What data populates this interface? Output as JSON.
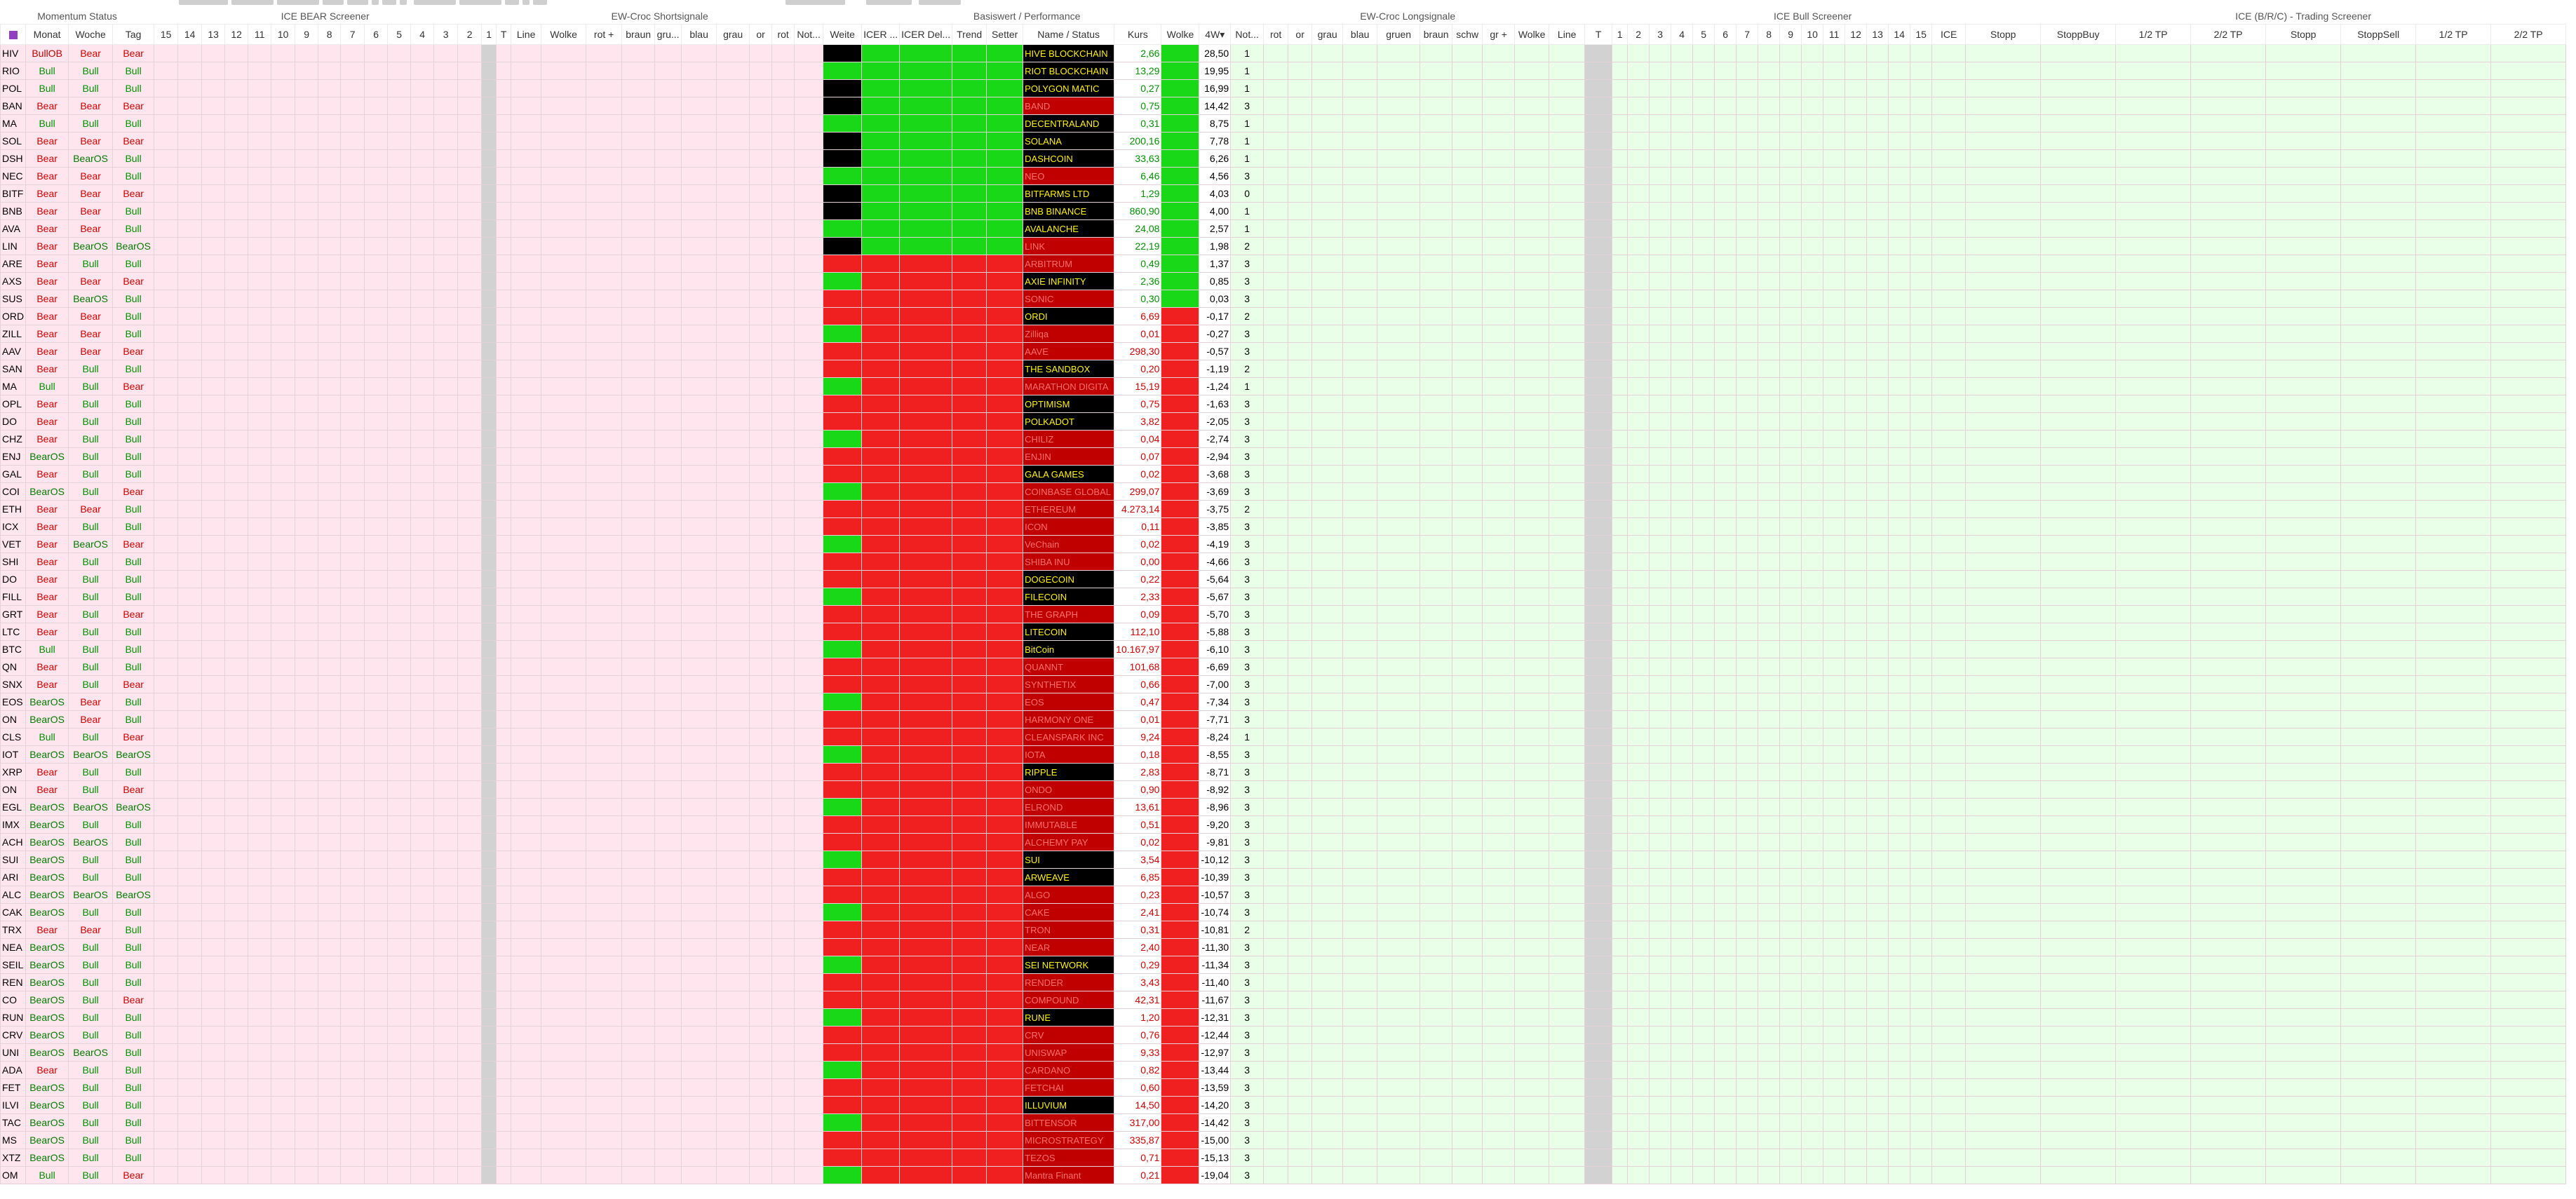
{
  "group_headers": [
    "Momentum Status",
    "ICE BEAR Screener",
    "EW-Croc Shortsignale",
    "Basiswert / Performance",
    "EW-Croc Longsignale",
    "ICE Bull Screener",
    "ICE (B/R/C) - Trading Screener"
  ],
  "columns": [
    "",
    "Monat",
    "Woche",
    "Tag",
    "15",
    "14",
    "13",
    "12",
    "11",
    "10",
    "9",
    "8",
    "7",
    "6",
    "5",
    "4",
    "3",
    "2",
    "1",
    "T",
    "Line",
    "Wolke",
    "rot +",
    "braun",
    "gru...",
    "blau",
    "grau",
    "or",
    "rot",
    "Not...",
    "Weite",
    "ICER ...",
    "ICER Del...",
    "Trend",
    "Setter",
    "Name / Status",
    "Kurs",
    "Wolke",
    "4W▾",
    "Not...",
    "rot",
    "or",
    "grau",
    "blau",
    "gruen",
    "braun",
    "schw",
    "gr +",
    "Wolke",
    "Line",
    "T",
    "1",
    "2",
    "3",
    "4",
    "5",
    "6",
    "7",
    "8",
    "9",
    "10",
    "11",
    "12",
    "13",
    "14",
    "15",
    "ICE",
    "Stopp",
    "StoppBuy",
    "1/2 TP",
    "2/2 TP",
    "Stopp",
    "StoppSell",
    "1/2 TP",
    "2/2 TP"
  ],
  "rows": [
    {
      "tk": "HIV",
      "m": "BullOB",
      "w": "Bear",
      "t": "Bear",
      "name": "HIVE BLOCKCHAIN",
      "kurs": "2,66",
      "fw": "28,50",
      "nt": "1"
    },
    {
      "tk": "RIO",
      "m": "Bull",
      "w": "Bull",
      "t": "Bull",
      "name": "RIOT BLOCKCHAIN",
      "kurs": "13,29",
      "fw": "19,95",
      "nt": "1"
    },
    {
      "tk": "POL",
      "m": "Bull",
      "w": "Bull",
      "t": "Bull",
      "name": "POLYGON MATIC",
      "kurs": "0,27",
      "fw": "16,99",
      "nt": "1"
    },
    {
      "tk": "BAN",
      "m": "Bear",
      "w": "Bear",
      "t": "Bear",
      "name": "BAND",
      "kurs": "0,75",
      "fw": "14,42",
      "nt": "3"
    },
    {
      "tk": "MA",
      "m": "Bull",
      "w": "Bull",
      "t": "Bull",
      "name": "DECENTRALAND",
      "kurs": "0,31",
      "fw": "8,75",
      "nt": "1"
    },
    {
      "tk": "SOL",
      "m": "Bear",
      "w": "Bear",
      "t": "Bear",
      "name": "SOLANA",
      "kurs": "200,16",
      "fw": "7,78",
      "nt": "1"
    },
    {
      "tk": "DSH",
      "m": "Bear",
      "w": "BearOS",
      "t": "Bull",
      "name": "DASHCOIN",
      "kurs": "33,63",
      "fw": "6,26",
      "nt": "1"
    },
    {
      "tk": "NEC",
      "m": "Bear",
      "w": "Bear",
      "t": "Bull",
      "name": "NEO",
      "kurs": "6,46",
      "fw": "4,56",
      "nt": "3"
    },
    {
      "tk": "BITF",
      "m": "Bear",
      "w": "Bear",
      "t": "Bear",
      "name": "BITFARMS LTD",
      "kurs": "1,29",
      "fw": "4,03",
      "nt": "0"
    },
    {
      "tk": "BNB",
      "m": "Bear",
      "w": "Bear",
      "t": "Bull",
      "name": "BNB BINANCE",
      "kurs": "860,90",
      "fw": "4,00",
      "nt": "1"
    },
    {
      "tk": "AVA",
      "m": "Bear",
      "w": "Bear",
      "t": "Bull",
      "name": "AVALANCHE",
      "kurs": "24,08",
      "fw": "2,57",
      "nt": "1"
    },
    {
      "tk": "LIN",
      "m": "Bear",
      "w": "BearOS",
      "t": "BearOS",
      "name": "LINK",
      "kurs": "22,19",
      "fw": "1,98",
      "nt": "2"
    },
    {
      "tk": "ARE",
      "m": "Bear",
      "w": "Bull",
      "t": "Bull",
      "name": "ARBITRUM",
      "kurs": "0,49",
      "fw": "1,37",
      "nt": "3"
    },
    {
      "tk": "AXS",
      "m": "Bear",
      "w": "Bear",
      "t": "Bear",
      "name": "AXIE INFINITY",
      "kurs": "2,36",
      "fw": "0,85",
      "nt": "3"
    },
    {
      "tk": "SUS",
      "m": "Bear",
      "w": "BearOS",
      "t": "Bull",
      "name": "SONIC",
      "kurs": "0,30",
      "fw": "0,03",
      "nt": "3"
    },
    {
      "tk": "ORD",
      "m": "Bear",
      "w": "Bear",
      "t": "Bull",
      "name": "ORDI",
      "kurs": "6,69",
      "fw": "-0,17",
      "nt": "2"
    },
    {
      "tk": "ZILL",
      "m": "Bear",
      "w": "Bear",
      "t": "Bull",
      "name": "Zilliqa",
      "kurs": "0,01",
      "fw": "-0,27",
      "nt": "3"
    },
    {
      "tk": "AAV",
      "m": "Bear",
      "w": "Bear",
      "t": "Bear",
      "name": "AAVE",
      "kurs": "298,30",
      "fw": "-0,57",
      "nt": "3"
    },
    {
      "tk": "SAN",
      "m": "Bear",
      "w": "Bull",
      "t": "Bull",
      "name": "THE SANDBOX",
      "kurs": "0,20",
      "fw": "-1,19",
      "nt": "2"
    },
    {
      "tk": "MA",
      "m": "Bull",
      "w": "Bull",
      "t": "Bear",
      "name": "MARATHON DIGITA",
      "kurs": "15,19",
      "fw": "-1,24",
      "nt": "1"
    },
    {
      "tk": "OPL",
      "m": "Bear",
      "w": "Bull",
      "t": "Bull",
      "name": "OPTIMISM",
      "kurs": "0,75",
      "fw": "-1,63",
      "nt": "3"
    },
    {
      "tk": "DO",
      "m": "Bear",
      "w": "Bull",
      "t": "Bull",
      "name": "POLKADOT",
      "kurs": "3,82",
      "fw": "-2,05",
      "nt": "3"
    },
    {
      "tk": "CHZ",
      "m": "Bear",
      "w": "Bull",
      "t": "Bull",
      "name": "CHILIZ",
      "kurs": "0,04",
      "fw": "-2,74",
      "nt": "3"
    },
    {
      "tk": "ENJ",
      "m": "BearOS",
      "w": "Bull",
      "t": "Bull",
      "name": "ENJIN",
      "kurs": "0,07",
      "fw": "-2,94",
      "nt": "3"
    },
    {
      "tk": "GAL",
      "m": "Bear",
      "w": "Bull",
      "t": "Bull",
      "name": "GALA GAMES",
      "kurs": "0,02",
      "fw": "-3,68",
      "nt": "3"
    },
    {
      "tk": "COI",
      "m": "BearOS",
      "w": "Bull",
      "t": "Bear",
      "name": "COINBASE GLOBAL",
      "kurs": "299,07",
      "fw": "-3,69",
      "nt": "3"
    },
    {
      "tk": "ETH",
      "m": "Bear",
      "w": "Bear",
      "t": "Bull",
      "name": "ETHEREUM",
      "kurs": "4.273,14",
      "fw": "-3,75",
      "nt": "2"
    },
    {
      "tk": "ICX",
      "m": "Bear",
      "w": "Bull",
      "t": "Bull",
      "name": "ICON",
      "kurs": "0,11",
      "fw": "-3,85",
      "nt": "3"
    },
    {
      "tk": "VET",
      "m": "Bear",
      "w": "BearOS",
      "t": "Bear",
      "name": "VeChain",
      "kurs": "0,02",
      "fw": "-4,19",
      "nt": "3"
    },
    {
      "tk": "SHI",
      "m": "Bear",
      "w": "Bull",
      "t": "Bull",
      "name": "SHIBA INU",
      "kurs": "0,00",
      "fw": "-4,66",
      "nt": "3"
    },
    {
      "tk": "DO",
      "m": "Bear",
      "w": "Bull",
      "t": "Bull",
      "name": "DOGECOIN",
      "kurs": "0,22",
      "fw": "-5,64",
      "nt": "3"
    },
    {
      "tk": "FILL",
      "m": "Bear",
      "w": "Bull",
      "t": "Bull",
      "name": "FILECOIN",
      "kurs": "2,33",
      "fw": "-5,67",
      "nt": "3"
    },
    {
      "tk": "GRT",
      "m": "Bear",
      "w": "Bull",
      "t": "Bear",
      "name": "THE GRAPH",
      "kurs": "0,09",
      "fw": "-5,70",
      "nt": "3"
    },
    {
      "tk": "LTC",
      "m": "Bear",
      "w": "Bull",
      "t": "Bull",
      "name": "LITECOIN",
      "kurs": "112,10",
      "fw": "-5,88",
      "nt": "3"
    },
    {
      "tk": "BTC",
      "m": "Bull",
      "w": "Bull",
      "t": "Bull",
      "name": "BitCoin",
      "kurs": "10.167,97",
      "fw": "-6,10",
      "nt": "3"
    },
    {
      "tk": "QN",
      "m": "Bear",
      "w": "Bull",
      "t": "Bull",
      "name": "QUANNT",
      "kurs": "101,68",
      "fw": "-6,69",
      "nt": "3"
    },
    {
      "tk": "SNX",
      "m": "Bear",
      "w": "Bull",
      "t": "Bear",
      "name": "SYNTHETIX",
      "kurs": "0,66",
      "fw": "-7,00",
      "nt": "3"
    },
    {
      "tk": "EOS",
      "m": "BearOS",
      "w": "Bear",
      "t": "Bull",
      "name": "EOS",
      "kurs": "0,47",
      "fw": "-7,34",
      "nt": "3"
    },
    {
      "tk": "ON",
      "m": "BearOS",
      "w": "Bear",
      "t": "Bull",
      "name": "HARMONY ONE",
      "kurs": "0,01",
      "fw": "-7,71",
      "nt": "3"
    },
    {
      "tk": "CLS",
      "m": "Bull",
      "w": "Bull",
      "t": "Bear",
      "name": "CLEANSPARK INC",
      "kurs": "9,24",
      "fw": "-8,24",
      "nt": "1"
    },
    {
      "tk": "IOT",
      "m": "BearOS",
      "w": "BearOS",
      "t": "BearOS",
      "name": "IOTA",
      "kurs": "0,18",
      "fw": "-8,55",
      "nt": "3"
    },
    {
      "tk": "XRP",
      "m": "Bear",
      "w": "Bull",
      "t": "Bull",
      "name": "RIPPLE",
      "kurs": "2,83",
      "fw": "-8,71",
      "nt": "3"
    },
    {
      "tk": "ON",
      "m": "Bear",
      "w": "Bull",
      "t": "Bear",
      "name": "ONDO",
      "kurs": "0,90",
      "fw": "-8,92",
      "nt": "3"
    },
    {
      "tk": "EGL",
      "m": "BearOS",
      "w": "BearOS",
      "t": "BearOS",
      "name": "ELROND",
      "kurs": "13,61",
      "fw": "-8,96",
      "nt": "3"
    },
    {
      "tk": "IMX",
      "m": "BearOS",
      "w": "Bull",
      "t": "Bull",
      "name": "IMMUTABLE",
      "kurs": "0,51",
      "fw": "-9,20",
      "nt": "3"
    },
    {
      "tk": "ACH",
      "m": "BearOS",
      "w": "BearOS",
      "t": "Bull",
      "name": "ALCHEMY PAY",
      "kurs": "0,02",
      "fw": "-9,81",
      "nt": "3"
    },
    {
      "tk": "SUI",
      "m": "BearOS",
      "w": "Bull",
      "t": "Bull",
      "name": "SUI",
      "kurs": "3,54",
      "fw": "-10,12",
      "nt": "3"
    },
    {
      "tk": "ARI",
      "m": "BearOS",
      "w": "Bull",
      "t": "Bull",
      "name": "ARWEAVE",
      "kurs": "6,85",
      "fw": "-10,39",
      "nt": "3"
    },
    {
      "tk": "ALC",
      "m": "BearOS",
      "w": "BearOS",
      "t": "BearOS",
      "name": "ALGO",
      "kurs": "0,23",
      "fw": "-10,57",
      "nt": "3"
    },
    {
      "tk": "CAK",
      "m": "BearOS",
      "w": "Bull",
      "t": "Bull",
      "name": "CAKE",
      "kurs": "2,41",
      "fw": "-10,74",
      "nt": "3"
    },
    {
      "tk": "TRX",
      "m": "Bear",
      "w": "Bear",
      "t": "Bull",
      "name": "TRON",
      "kurs": "0,31",
      "fw": "-10,81",
      "nt": "2"
    },
    {
      "tk": "NEA",
      "m": "BearOS",
      "w": "Bull",
      "t": "Bull",
      "name": "NEAR",
      "kurs": "2,40",
      "fw": "-11,30",
      "nt": "3"
    },
    {
      "tk": "SEIL",
      "m": "BearOS",
      "w": "Bull",
      "t": "Bull",
      "name": "SEI NETWORK",
      "kurs": "0,29",
      "fw": "-11,34",
      "nt": "3"
    },
    {
      "tk": "REN",
      "m": "BearOS",
      "w": "Bull",
      "t": "Bull",
      "name": "RENDER",
      "kurs": "3,43",
      "fw": "-11,40",
      "nt": "3"
    },
    {
      "tk": "CO",
      "m": "BearOS",
      "w": "Bull",
      "t": "Bear",
      "name": "COMPOUND",
      "kurs": "42,31",
      "fw": "-11,67",
      "nt": "3"
    },
    {
      "tk": "RUN",
      "m": "BearOS",
      "w": "Bull",
      "t": "Bull",
      "name": "RUNE",
      "kurs": "1,20",
      "fw": "-12,31",
      "nt": "3"
    },
    {
      "tk": "CRV",
      "m": "BearOS",
      "w": "Bull",
      "t": "Bull",
      "name": "CRV",
      "kurs": "0,76",
      "fw": "-12,44",
      "nt": "3"
    },
    {
      "tk": "UNI",
      "m": "BearOS",
      "w": "BearOS",
      "t": "Bull",
      "name": "UNISWAP",
      "kurs": "9,33",
      "fw": "-12,97",
      "nt": "3"
    },
    {
      "tk": "ADA",
      "m": "Bear",
      "w": "Bull",
      "t": "Bull",
      "name": "CARDANO",
      "kurs": "0,82",
      "fw": "-13,44",
      "nt": "3"
    },
    {
      "tk": "FET",
      "m": "BearOS",
      "w": "Bull",
      "t": "Bull",
      "name": "FETCHAI",
      "kurs": "0,60",
      "fw": "-13,59",
      "nt": "3"
    },
    {
      "tk": "ILVI",
      "m": "BearOS",
      "w": "Bull",
      "t": "Bull",
      "name": "ILLUVIUM",
      "kurs": "14,50",
      "fw": "-14,20",
      "nt": "3"
    },
    {
      "tk": "TAC",
      "m": "BearOS",
      "w": "Bull",
      "t": "Bull",
      "name": "BITTENSOR",
      "kurs": "317,00",
      "fw": "-14,42",
      "nt": "3"
    },
    {
      "tk": "MS",
      "m": "BearOS",
      "w": "Bull",
      "t": "Bull",
      "name": "MICROSTRATEGY",
      "kurs": "335,87",
      "fw": "-15,00",
      "nt": "3"
    },
    {
      "tk": "XTZ",
      "m": "BearOS",
      "w": "Bull",
      "t": "Bull",
      "name": "TEZOS",
      "kurs": "0,71",
      "fw": "-15,13",
      "nt": "3"
    },
    {
      "tk": "OM",
      "m": "Bull",
      "w": "Bull",
      "t": "Bear",
      "name": "Mantra Finant",
      "kurs": "0,21",
      "fw": "-19,04",
      "nt": "3"
    }
  ]
}
